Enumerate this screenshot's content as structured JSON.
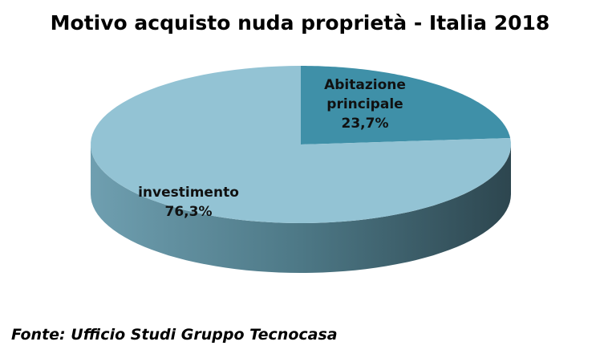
{
  "chart_data": {
    "type": "pie3d",
    "title": "Motivo acquisto nuda proprietà - Italia 2018",
    "categories": [
      "Abitazione principale",
      "investimento"
    ],
    "values": [
      23.7,
      76.3
    ],
    "value_labels": [
      "23,7%",
      "76,3%"
    ],
    "colors": [
      "#3f90a8",
      "#93c3d4"
    ],
    "source": "Fonte: Ufficio Studi Gruppo Tecnocasa"
  }
}
